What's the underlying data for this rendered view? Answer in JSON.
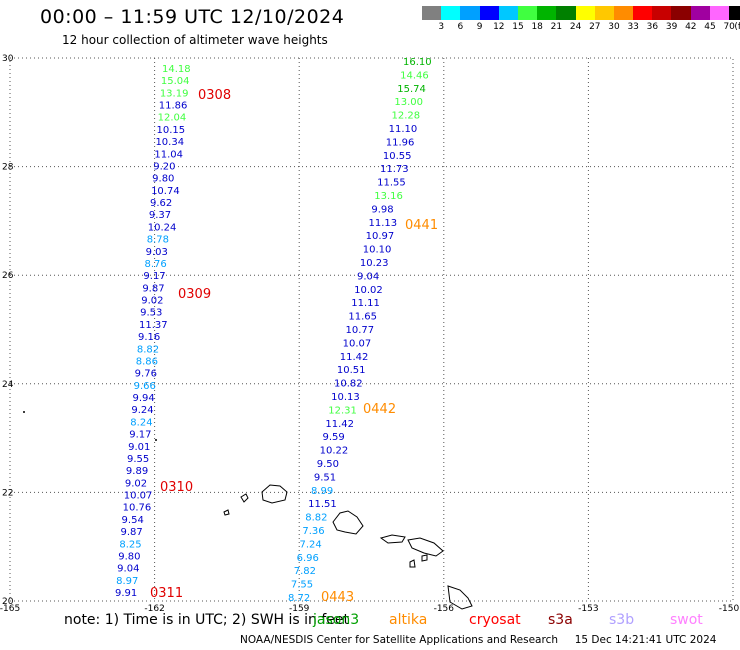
{
  "header": {
    "title": "00:00 – 11:59 UTC 12/10/2024",
    "subtitle": "12 hour collection of altimeter wave heights"
  },
  "colorbar": {
    "colors": [
      "#808080",
      "#00ffff",
      "#00a0ff",
      "#0000ff",
      "#00c8ff",
      "#40ff40",
      "#00b400",
      "#008000",
      "#ffff00",
      "#ffc800",
      "#ff8c00",
      "#ff0000",
      "#c80000",
      "#8b0000",
      "#a000a0",
      "#ff66ff",
      "#000000"
    ],
    "labels": [
      "3",
      "6",
      "9",
      "12",
      "15",
      "18",
      "21",
      "24",
      "27",
      "30",
      "33",
      "36",
      "39",
      "42",
      "45",
      "70",
      "(ft)"
    ]
  },
  "map": {
    "lon_ticks": [
      "-165",
      "-162",
      "-159",
      "-156",
      "-153",
      "-150"
    ],
    "lat_ticks": [
      "30",
      "28",
      "26",
      "24",
      "22",
      "20"
    ],
    "track1": {
      "color": "#0000cc",
      "values": [
        "14.18",
        "15.04",
        "13.19",
        "11.86",
        "12.04",
        "10.15",
        "10.34",
        "11.04",
        "9.20",
        "9.80",
        "10.74",
        "9.62",
        "9.37",
        "10.24",
        "8.78",
        "9.03",
        "8.76",
        "9.17",
        "9.87",
        "9.02",
        "9.53",
        "11.37",
        "9.16",
        "8.82",
        "8.86",
        "9.76",
        "9.66",
        "9.94",
        "9.24",
        "8.24",
        "9.17",
        "9.01",
        "9.55",
        "9.89",
        "9.02",
        "10.07",
        "10.76",
        "9.54",
        "9.87",
        "8.25",
        "9.80",
        "9.04",
        "8.97",
        "9.91"
      ],
      "colors": [
        "#40ff40",
        "#40ff40",
        "#40ff40",
        "#0000cc",
        "#40ff40",
        "#0000cc",
        "#0000cc",
        "#0000cc",
        "#0000cc",
        "#0000cc",
        "#0000cc",
        "#0000cc",
        "#0000cc",
        "#0000cc",
        "#00a0ff",
        "#0000cc",
        "#00a0ff",
        "#0000cc",
        "#0000cc",
        "#0000cc",
        "#0000cc",
        "#0000cc",
        "#0000cc",
        "#00a0ff",
        "#00a0ff",
        "#0000cc",
        "#00a0ff",
        "#0000cc",
        "#0000cc",
        "#00a0ff",
        "#0000cc",
        "#0000cc",
        "#0000cc",
        "#0000cc",
        "#0000cc",
        "#0000cc",
        "#0000cc",
        "#0000cc",
        "#0000cc",
        "#00a0ff",
        "#0000cc",
        "#0000cc",
        "#00a0ff",
        "#0000cc"
      ]
    },
    "track2": {
      "values": [
        "16.10",
        "14.46",
        "15.74",
        "13.00",
        "12.28",
        "11.10",
        "11.96",
        "10.55",
        "11.73",
        "11.55",
        "13.16",
        "9.98",
        "11.13",
        "10.97",
        "10.10",
        "10.23",
        "9.04",
        "10.02",
        "11.11",
        "11.65",
        "10.77",
        "10.07",
        "11.42",
        "10.51",
        "10.82",
        "10.13",
        "12.31",
        "11.42",
        "9.59",
        "10.22",
        "9.50",
        "9.51",
        "8.99",
        "11.51",
        "8.82",
        "7.36",
        "7.24",
        "6.96",
        "7.82",
        "7.55",
        "8.72"
      ],
      "colors": [
        "#00b400",
        "#40ff40",
        "#00b400",
        "#40ff40",
        "#40ff40",
        "#0000cc",
        "#0000cc",
        "#0000cc",
        "#0000cc",
        "#0000cc",
        "#40ff40",
        "#0000cc",
        "#0000cc",
        "#0000cc",
        "#0000cc",
        "#0000cc",
        "#0000cc",
        "#0000cc",
        "#0000cc",
        "#0000cc",
        "#0000cc",
        "#0000cc",
        "#0000cc",
        "#0000cc",
        "#0000cc",
        "#0000cc",
        "#40ff40",
        "#0000cc",
        "#0000cc",
        "#0000cc",
        "#0000cc",
        "#0000cc",
        "#00a0ff",
        "#0000cc",
        "#00a0ff",
        "#00a0ff",
        "#00a0ff",
        "#00a0ff",
        "#00a0ff",
        "#00a0ff",
        "#00a0ff"
      ]
    },
    "time_labels": [
      {
        "text": "0308",
        "color": "#e00000"
      },
      {
        "text": "0309",
        "color": "#e00000"
      },
      {
        "text": "0310",
        "color": "#e00000"
      },
      {
        "text": "0311",
        "color": "#e00000"
      },
      {
        "text": "0441",
        "color": "#ff8c00"
      },
      {
        "text": "0442",
        "color": "#ff8c00"
      },
      {
        "text": "0443",
        "color": "#ff8c00"
      }
    ]
  },
  "legend": {
    "note": "note: 1) Time is in UTC; 2) SWH is in feet",
    "satellites": [
      {
        "name": "jason3",
        "color": "#00a000"
      },
      {
        "name": "altika",
        "color": "#ff8c00"
      },
      {
        "name": "cryosat",
        "color": "#ff0000"
      },
      {
        "name": "s3a",
        "color": "#8b0000"
      },
      {
        "name": "s3b",
        "color": "#b0a0ff"
      },
      {
        "name": "swot",
        "color": "#ff80ff"
      }
    ]
  },
  "footer": {
    "credit": "NOAA/NESDIS Center for Satellite Applications and Research",
    "timestamp": "15 Dec 14:21:41 UTC 2024"
  }
}
